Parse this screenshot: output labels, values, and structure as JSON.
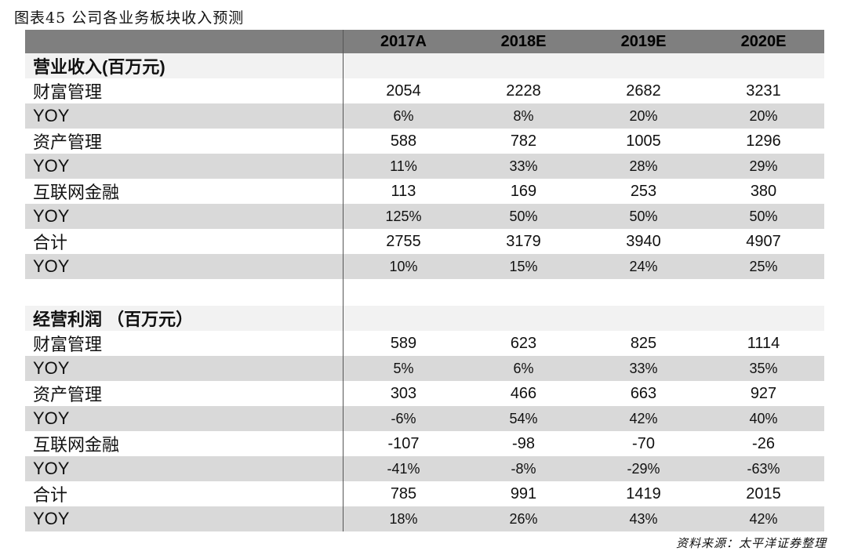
{
  "title": "图表45 公司各业务板块收入预测",
  "columns": [
    "2017A",
    "2018E",
    "2019E",
    "2020E"
  ],
  "sections": [
    {
      "heading": "营业收入(百万元)",
      "rows": [
        {
          "label": "财富管理",
          "values": [
            "2054",
            "2228",
            "2682",
            "3231"
          ],
          "yoy": false
        },
        {
          "label": "YOY",
          "values": [
            "6%",
            "8%",
            "20%",
            "20%"
          ],
          "yoy": true
        },
        {
          "label": "资产管理",
          "values": [
            "588",
            "782",
            "1005",
            "1296"
          ],
          "yoy": false
        },
        {
          "label": "YOY",
          "values": [
            "11%",
            "33%",
            "28%",
            "29%"
          ],
          "yoy": true
        },
        {
          "label": "互联网金融",
          "values": [
            "113",
            "169",
            "253",
            "380"
          ],
          "yoy": false
        },
        {
          "label": "YOY",
          "values": [
            "125%",
            "50%",
            "50%",
            "50%"
          ],
          "yoy": true
        },
        {
          "label": "合计",
          "values": [
            "2755",
            "3179",
            "3940",
            "4907"
          ],
          "yoy": false
        },
        {
          "label": "YOY",
          "values": [
            "10%",
            "15%",
            "24%",
            "25%"
          ],
          "yoy": true
        }
      ]
    },
    {
      "heading": "经营利润 （百万元）",
      "rows": [
        {
          "label": "财富管理",
          "values": [
            "589",
            "623",
            "825",
            "1114"
          ],
          "yoy": false
        },
        {
          "label": "YOY",
          "values": [
            "5%",
            "6%",
            "33%",
            "35%"
          ],
          "yoy": true
        },
        {
          "label": "资产管理",
          "values": [
            "303",
            "466",
            "663",
            "927"
          ],
          "yoy": false
        },
        {
          "label": "YOY",
          "values": [
            "-6%",
            "54%",
            "42%",
            "40%"
          ],
          "yoy": true
        },
        {
          "label": "互联网金融",
          "values": [
            "-107",
            "-98",
            "-70",
            "-26"
          ],
          "yoy": false
        },
        {
          "label": "YOY",
          "values": [
            "-41%",
            "-8%",
            "-29%",
            "-63%"
          ],
          "yoy": true
        },
        {
          "label": "合计",
          "values": [
            "785",
            "991",
            "1419",
            "2015"
          ],
          "yoy": false
        },
        {
          "label": "YOY",
          "values": [
            "18%",
            "26%",
            "43%",
            "42%"
          ],
          "yoy": true
        }
      ]
    }
  ],
  "source": "资料来源：太平洋证券整理"
}
